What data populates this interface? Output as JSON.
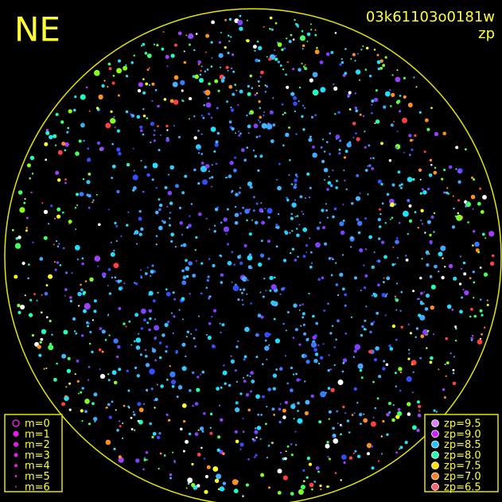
{
  "header": {
    "direction": "NE",
    "frame": "03k61103o0181w",
    "quantity": "zp"
  },
  "legend_magnitude": {
    "items": [
      {
        "label": "m=0"
      },
      {
        "label": "m=1"
      },
      {
        "label": "m=2"
      },
      {
        "label": "m=3"
      },
      {
        "label": "m=4"
      },
      {
        "label": "m=5"
      },
      {
        "label": "m=6"
      }
    ]
  },
  "legend_zp": {
    "items": [
      {
        "label": "zp=9.5",
        "color": "#e07cff"
      },
      {
        "label": "zp=9.0",
        "color": "#d020ff"
      },
      {
        "label": "zp=8.5",
        "color": "#20c8ff"
      },
      {
        "label": "zp=8.0",
        "color": "#20ffb0"
      },
      {
        "label": "zp=7.5",
        "color": "#ffe000"
      },
      {
        "label": "zp=7.0",
        "color": "#ff8020"
      },
      {
        "label": "zp=6.5",
        "color": "#ff6070"
      }
    ]
  }
}
